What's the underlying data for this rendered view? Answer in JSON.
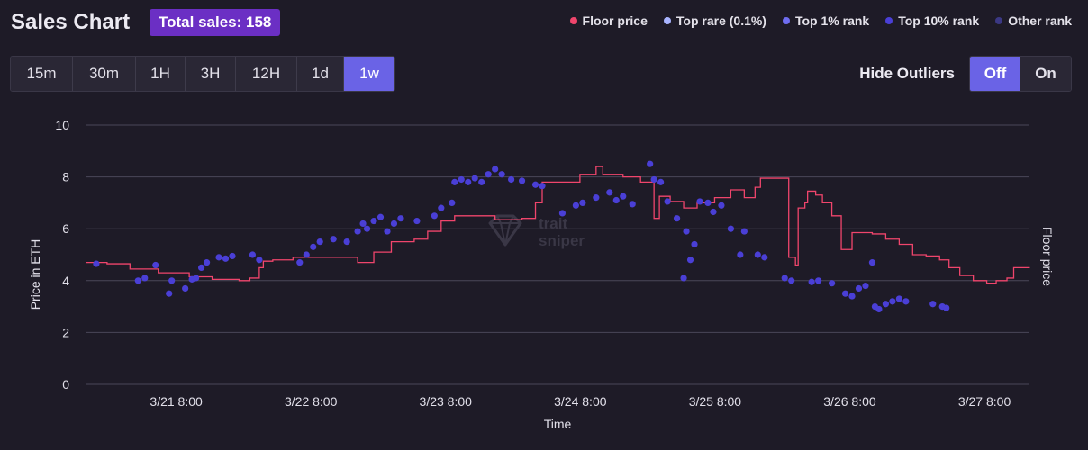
{
  "header": {
    "title": "Sales Chart",
    "total_sales": "Total sales: 158"
  },
  "legend": [
    {
      "label": "Floor price",
      "color": "#f0456c"
    },
    {
      "label": "Top rare (0.1%)",
      "color": "#a9b4ff"
    },
    {
      "label": "Top 1% rank",
      "color": "#6f6df0"
    },
    {
      "label": "Top 10% rank",
      "color": "#4a3fd6"
    },
    {
      "label": "Other rank",
      "color": "#3b3884"
    }
  ],
  "timeframes": [
    {
      "label": "15m",
      "active": false
    },
    {
      "label": "30m",
      "active": false
    },
    {
      "label": "1H",
      "active": false
    },
    {
      "label": "3H",
      "active": false
    },
    {
      "label": "12H",
      "active": false
    },
    {
      "label": "1d",
      "active": false
    },
    {
      "label": "1w",
      "active": true
    }
  ],
  "outliers": {
    "label": "Hide Outliers",
    "off": "Off",
    "on": "On",
    "selected": "Off"
  },
  "watermark": {
    "line1": "trait",
    "line2": "sniper"
  },
  "chart_data": {
    "type": "scatter",
    "xlabel": "Time",
    "ylabel": "Price in ETH",
    "y2label": "Floor price",
    "ylim": [
      0,
      10
    ],
    "yticks": [
      0,
      2,
      4,
      6,
      8,
      10
    ],
    "xlim_days": [
      20.667,
      27.667
    ],
    "xticks": [
      {
        "label": "3/21 8:00",
        "day": 21.333
      },
      {
        "label": "3/22 8:00",
        "day": 22.333
      },
      {
        "label": "3/23 8:00",
        "day": 23.333
      },
      {
        "label": "3/24 8:00",
        "day": 24.333
      },
      {
        "label": "3/25 8:00",
        "day": 25.333
      },
      {
        "label": "3/26 8:00",
        "day": 26.333
      },
      {
        "label": "3/27 8:00",
        "day": 27.333
      }
    ],
    "floor_price": [
      [
        20.667,
        4.7
      ],
      [
        20.82,
        4.65
      ],
      [
        20.99,
        4.45
      ],
      [
        21.2,
        4.3
      ],
      [
        21.43,
        4.15
      ],
      [
        21.6,
        4.05
      ],
      [
        21.8,
        4.0
      ],
      [
        21.88,
        4.1
      ],
      [
        21.95,
        4.5
      ],
      [
        21.98,
        4.75
      ],
      [
        22.05,
        4.8
      ],
      [
        22.2,
        4.9
      ],
      [
        22.5,
        4.9
      ],
      [
        22.67,
        4.9
      ],
      [
        22.68,
        4.7
      ],
      [
        22.8,
        5.1
      ],
      [
        22.93,
        5.5
      ],
      [
        23.1,
        5.6
      ],
      [
        23.2,
        5.9
      ],
      [
        23.3,
        6.3
      ],
      [
        23.4,
        6.5
      ],
      [
        23.65,
        6.5
      ],
      [
        23.7,
        6.35
      ],
      [
        23.9,
        6.4
      ],
      [
        24.0,
        7.0
      ],
      [
        24.05,
        7.8
      ],
      [
        24.2,
        7.8
      ],
      [
        24.33,
        8.1
      ],
      [
        24.45,
        8.4
      ],
      [
        24.5,
        8.1
      ],
      [
        24.65,
        8.0
      ],
      [
        24.78,
        7.8
      ],
      [
        24.88,
        6.4
      ],
      [
        24.92,
        7.25
      ],
      [
        25.0,
        7.05
      ],
      [
        25.1,
        6.8
      ],
      [
        25.2,
        7.0
      ],
      [
        25.33,
        7.2
      ],
      [
        25.45,
        7.5
      ],
      [
        25.55,
        7.2
      ],
      [
        25.63,
        7.6
      ],
      [
        25.67,
        7.95
      ],
      [
        25.77,
        7.95
      ],
      [
        25.87,
        7.95
      ],
      [
        25.88,
        4.9
      ],
      [
        25.93,
        4.6
      ],
      [
        25.95,
        6.8
      ],
      [
        26.0,
        7.0
      ],
      [
        26.02,
        7.45
      ],
      [
        26.08,
        7.3
      ],
      [
        26.13,
        7.0
      ],
      [
        26.2,
        6.5
      ],
      [
        26.27,
        5.2
      ],
      [
        26.35,
        5.85
      ],
      [
        26.5,
        5.8
      ],
      [
        26.6,
        5.6
      ],
      [
        26.7,
        5.4
      ],
      [
        26.8,
        5.0
      ],
      [
        26.9,
        4.95
      ],
      [
        27.0,
        4.8
      ],
      [
        27.07,
        4.5
      ],
      [
        27.15,
        4.2
      ],
      [
        27.25,
        4.0
      ],
      [
        27.35,
        3.9
      ],
      [
        27.42,
        4.0
      ],
      [
        27.5,
        4.1
      ],
      [
        27.55,
        4.5
      ],
      [
        27.67,
        4.5
      ]
    ],
    "scatter_points": [
      [
        20.74,
        4.65
      ],
      [
        21.05,
        4.0
      ],
      [
        21.1,
        4.1
      ],
      [
        21.18,
        4.6
      ],
      [
        21.28,
        3.5
      ],
      [
        21.3,
        4.0
      ],
      [
        21.4,
        3.7
      ],
      [
        21.45,
        4.05
      ],
      [
        21.48,
        4.1
      ],
      [
        21.52,
        4.5
      ],
      [
        21.56,
        4.7
      ],
      [
        21.65,
        4.9
      ],
      [
        21.7,
        4.85
      ],
      [
        21.75,
        4.95
      ],
      [
        21.9,
        5.0
      ],
      [
        21.95,
        4.8
      ],
      [
        22.25,
        4.7
      ],
      [
        22.3,
        5.0
      ],
      [
        22.35,
        5.3
      ],
      [
        22.4,
        5.5
      ],
      [
        22.5,
        5.6
      ],
      [
        22.6,
        5.5
      ],
      [
        22.68,
        5.9
      ],
      [
        22.72,
        6.2
      ],
      [
        22.75,
        6.0
      ],
      [
        22.8,
        6.3
      ],
      [
        22.85,
        6.45
      ],
      [
        22.9,
        5.9
      ],
      [
        22.95,
        6.2
      ],
      [
        23.0,
        6.4
      ],
      [
        23.12,
        6.3
      ],
      [
        23.25,
        6.5
      ],
      [
        23.3,
        6.8
      ],
      [
        23.38,
        7.0
      ],
      [
        23.4,
        7.8
      ],
      [
        23.45,
        7.9
      ],
      [
        23.5,
        7.8
      ],
      [
        23.55,
        7.95
      ],
      [
        23.6,
        7.8
      ],
      [
        23.65,
        8.1
      ],
      [
        23.7,
        8.3
      ],
      [
        23.75,
        8.1
      ],
      [
        23.82,
        7.9
      ],
      [
        23.9,
        7.85
      ],
      [
        24.0,
        7.7
      ],
      [
        24.05,
        7.65
      ],
      [
        24.2,
        6.6
      ],
      [
        24.3,
        6.9
      ],
      [
        24.35,
        7.0
      ],
      [
        24.45,
        7.2
      ],
      [
        24.55,
        7.4
      ],
      [
        24.6,
        7.1
      ],
      [
        24.65,
        7.25
      ],
      [
        24.72,
        6.95
      ],
      [
        24.85,
        8.5
      ],
      [
        24.88,
        7.9
      ],
      [
        24.93,
        7.8
      ],
      [
        24.98,
        7.05
      ],
      [
        25.05,
        6.4
      ],
      [
        25.1,
        4.1
      ],
      [
        25.12,
        5.9
      ],
      [
        25.15,
        4.8
      ],
      [
        25.18,
        5.4
      ],
      [
        25.22,
        7.05
      ],
      [
        25.28,
        7.0
      ],
      [
        25.32,
        6.65
      ],
      [
        25.38,
        6.9
      ],
      [
        25.45,
        6.0
      ],
      [
        25.52,
        5.0
      ],
      [
        25.55,
        5.9
      ],
      [
        25.65,
        5.0
      ],
      [
        25.7,
        4.9
      ],
      [
        25.85,
        4.1
      ],
      [
        25.9,
        4.0
      ],
      [
        26.05,
        3.95
      ],
      [
        26.1,
        4.0
      ],
      [
        26.2,
        3.9
      ],
      [
        26.3,
        3.5
      ],
      [
        26.35,
        3.4
      ],
      [
        26.4,
        3.7
      ],
      [
        26.45,
        3.8
      ],
      [
        26.5,
        4.7
      ],
      [
        26.52,
        3.0
      ],
      [
        26.55,
        2.9
      ],
      [
        26.6,
        3.1
      ],
      [
        26.65,
        3.2
      ],
      [
        26.7,
        3.3
      ],
      [
        26.75,
        3.2
      ],
      [
        26.95,
        3.1
      ],
      [
        27.02,
        3.0
      ],
      [
        27.05,
        2.95
      ]
    ]
  }
}
